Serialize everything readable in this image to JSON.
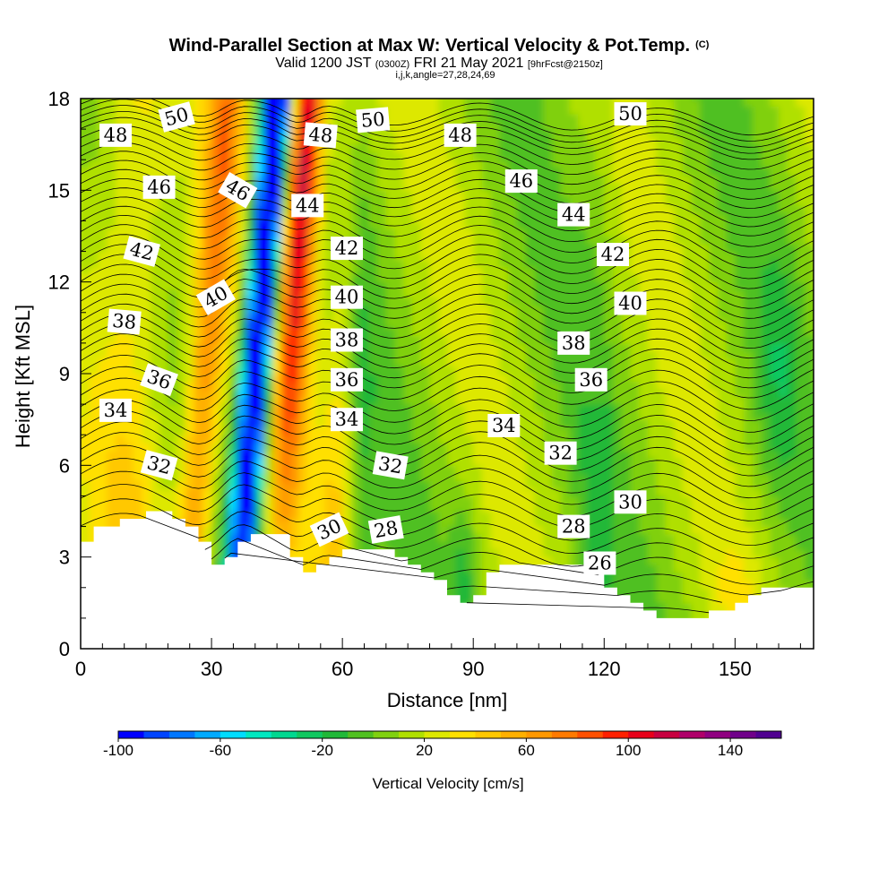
{
  "title": {
    "main": "Wind-Parallel Section at Max W: Vertical Velocity & Pot.Temp.",
    "main_mark": "(C)",
    "sub_a": "Valid 1200 JST",
    "sub_b": "(0300Z)",
    "sub_c": "FRI 21 May 2021",
    "sub_d": "[9hrFcst@2150z]",
    "sub_e": "i,j,k,angle=27,28,24,69"
  },
  "chart_data": {
    "type": "heatmap",
    "xlabel": "Distance [nm]",
    "ylabel": "Height [Kft MSL]",
    "xlim": [
      0,
      168
    ],
    "ylim": [
      0,
      18
    ],
    "xticks": [
      0,
      30,
      60,
      90,
      120,
      150
    ],
    "yticks": [
      0,
      3,
      6,
      9,
      12,
      15,
      18
    ],
    "colorbar": {
      "label": "Vertical Velocity [cm/s]",
      "min": -100,
      "max": 160,
      "step": 10,
      "tick_values": [
        -100,
        -60,
        -20,
        20,
        60,
        100,
        140
      ],
      "colors": [
        "#0000ff",
        "#0044ff",
        "#0077ff",
        "#00aaff",
        "#00ddff",
        "#00e8c0",
        "#00d890",
        "#10c860",
        "#20b838",
        "#50c020",
        "#80d010",
        "#b0e000",
        "#dde800",
        "#ffe000",
        "#ffc800",
        "#ffb000",
        "#ff9800",
        "#ff7a00",
        "#ff5000",
        "#ff2000",
        "#e8001a",
        "#c80040",
        "#b0006a",
        "#900080",
        "#70008a",
        "#500090"
      ]
    },
    "terrain_kft": [
      [
        0,
        3.6
      ],
      [
        3,
        3.9
      ],
      [
        6,
        4.1
      ],
      [
        12,
        4.3
      ],
      [
        18,
        4.5
      ],
      [
        22,
        4.3
      ],
      [
        26,
        3.6
      ],
      [
        30,
        2.7
      ],
      [
        34,
        3.0
      ],
      [
        38,
        3.8
      ],
      [
        45,
        3.8
      ],
      [
        48,
        3.0
      ],
      [
        52,
        2.4
      ],
      [
        57,
        3.0
      ],
      [
        62,
        3.3
      ],
      [
        68,
        3.2
      ],
      [
        74,
        2.8
      ],
      [
        80,
        2.4
      ],
      [
        85,
        1.6
      ],
      [
        89,
        1.4
      ],
      [
        92,
        2.4
      ],
      [
        96,
        2.8
      ],
      [
        105,
        2.8
      ],
      [
        112,
        2.7
      ],
      [
        117,
        2.6
      ],
      [
        120,
        2.0
      ],
      [
        124,
        1.6
      ],
      [
        128,
        1.3
      ],
      [
        134,
        1.0
      ],
      [
        140,
        1.0
      ],
      [
        145,
        1.2
      ],
      [
        150,
        1.6
      ],
      [
        156,
        1.9
      ],
      [
        162,
        1.9
      ],
      [
        168,
        1.9
      ]
    ],
    "theta_contours": [
      {
        "label": "26",
        "base": 1.0,
        "v": 0.0
      },
      {
        "label": "28",
        "base": 2.8,
        "v": 0.4
      },
      {
        "label": "30",
        "base": 4.6,
        "v": 0.5
      },
      {
        "label": "32",
        "base": 6.2,
        "v": 0.6
      },
      {
        "label": "34",
        "base": 7.6,
        "v": 0.6
      },
      {
        "label": "36",
        "base": 9.1,
        "v": 0.6
      },
      {
        "label": "38",
        "base": 10.4,
        "v": 0.6
      },
      {
        "label": "40",
        "base": 11.7,
        "v": 0.6
      },
      {
        "label": "42",
        "base": 13.0,
        "v": 0.6
      },
      {
        "label": "44",
        "base": 14.3,
        "v": 0.5
      },
      {
        "label": "46",
        "base": 15.5,
        "v": 0.5
      },
      {
        "label": "48",
        "base": 16.7,
        "v": 0.4
      },
      {
        "label": "50",
        "base": 17.5,
        "v": 0.4
      }
    ],
    "contour_labels": [
      {
        "text": "48",
        "x": 8,
        "y": 16.8,
        "r": 0
      },
      {
        "text": "50",
        "x": 22,
        "y": 17.4,
        "r": -15
      },
      {
        "text": "46",
        "x": 18,
        "y": 15.1,
        "r": 0
      },
      {
        "text": "46",
        "x": 36,
        "y": 15.0,
        "r": 30
      },
      {
        "text": "42",
        "x": 14,
        "y": 13.0,
        "r": 15
      },
      {
        "text": "40",
        "x": 31,
        "y": 11.5,
        "r": -30
      },
      {
        "text": "38",
        "x": 10,
        "y": 10.7,
        "r": 5
      },
      {
        "text": "36",
        "x": 18,
        "y": 8.8,
        "r": 20
      },
      {
        "text": "34",
        "x": 8,
        "y": 7.8,
        "r": 0
      },
      {
        "text": "32",
        "x": 18,
        "y": 6.0,
        "r": 15
      },
      {
        "text": "50",
        "x": 67,
        "y": 17.3,
        "r": -5
      },
      {
        "text": "48",
        "x": 55,
        "y": 16.8,
        "r": 5
      },
      {
        "text": "44",
        "x": 52,
        "y": 14.5,
        "r": 0
      },
      {
        "text": "42",
        "x": 61,
        "y": 13.1,
        "r": 0
      },
      {
        "text": "40",
        "x": 61,
        "y": 11.5,
        "r": 0
      },
      {
        "text": "38",
        "x": 61,
        "y": 10.1,
        "r": 0
      },
      {
        "text": "36",
        "x": 61,
        "y": 8.8,
        "r": 0
      },
      {
        "text": "34",
        "x": 61,
        "y": 7.5,
        "r": 0
      },
      {
        "text": "32",
        "x": 71,
        "y": 6.0,
        "r": 10
      },
      {
        "text": "30",
        "x": 57,
        "y": 3.9,
        "r": -25
      },
      {
        "text": "28",
        "x": 70,
        "y": 3.9,
        "r": -10
      },
      {
        "text": "48",
        "x": 87,
        "y": 16.8,
        "r": 0
      },
      {
        "text": "46",
        "x": 101,
        "y": 15.3,
        "r": 0
      },
      {
        "text": "44",
        "x": 113,
        "y": 14.2,
        "r": 0
      },
      {
        "text": "42",
        "x": 122,
        "y": 12.9,
        "r": 0
      },
      {
        "text": "40",
        "x": 126,
        "y": 11.3,
        "r": 0
      },
      {
        "text": "38",
        "x": 113,
        "y": 10.0,
        "r": 0
      },
      {
        "text": "36",
        "x": 117,
        "y": 8.8,
        "r": 0
      },
      {
        "text": "34",
        "x": 97,
        "y": 7.3,
        "r": 0
      },
      {
        "text": "32",
        "x": 110,
        "y": 6.4,
        "r": 0
      },
      {
        "text": "30",
        "x": 126,
        "y": 4.8,
        "r": 0
      },
      {
        "text": "28",
        "x": 113,
        "y": 4.0,
        "r": 0
      },
      {
        "text": "26",
        "x": 119,
        "y": 2.8,
        "r": 0
      },
      {
        "text": "50",
        "x": 126,
        "y": 17.5,
        "r": 0
      }
    ]
  }
}
